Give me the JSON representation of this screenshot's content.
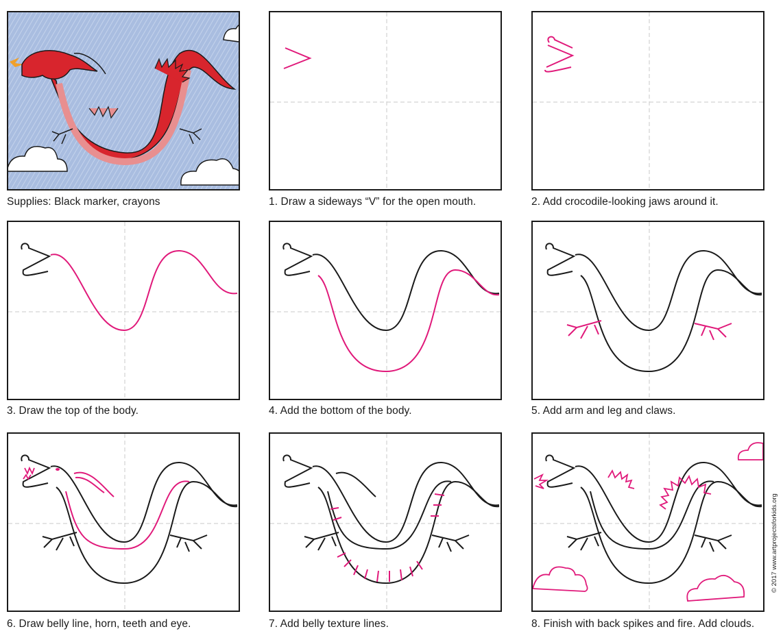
{
  "steps": [
    {
      "caption": "Supplies: Black marker, crayons"
    },
    {
      "caption": "1. Draw a sideways “V” for the open mouth."
    },
    {
      "caption": "2. Add crocodile-looking jaws around it."
    },
    {
      "caption": "3. Draw the top of the body."
    },
    {
      "caption": "4. Add the bottom of the body."
    },
    {
      "caption": "5. Add arm and leg and claws."
    },
    {
      "caption": "6. Draw belly line, horn, teeth and eye."
    },
    {
      "caption": "7. Add belly texture lines."
    },
    {
      "caption": "8. Finish with back spikes and fire. Add clouds."
    }
  ],
  "credit": "© 2017 www.artprojectsforkids.org",
  "colors": {
    "ink": "#1a1a1a",
    "new_line": "#e0197a",
    "guide": "#c8c8c8",
    "sky": "#a8bfe0",
    "dragon_red": "#d8252d",
    "belly_pink": "#e88f90"
  }
}
